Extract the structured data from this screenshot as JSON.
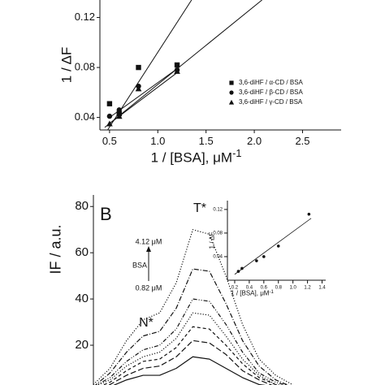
{
  "chart_data": [
    {
      "type": "scatter",
      "xlabel": "1 / [BSA], μM",
      "xlabel_sup": "-1",
      "ylabel": "1 / ΔF",
      "xlim": [
        0.4,
        2.9
      ],
      "ylim": [
        0.03,
        0.134
      ],
      "xticks": [
        0.5,
        {
          "value": 1.0,
          "label": "1.0"
        },
        1.5,
        {
          "value": 2.0,
          "label": "2.0"
        },
        2.5
      ],
      "yticks": [
        0.04,
        0.08,
        0.12
      ],
      "legend": "lower right",
      "series": [
        {
          "name": "3,6-diHF / α-CD / BSA",
          "marker": "square",
          "color": "#111111",
          "x": [
            0.5,
            0.6,
            0.8,
            1.2
          ],
          "values": [
            0.051,
            0.043,
            0.08,
            0.082
          ]
        },
        {
          "name": "3,6-diHF / β-CD / BSA",
          "marker": "circle",
          "color": "#111111",
          "x": [
            0.5,
            0.6,
            0.8,
            1.2
          ],
          "values": [
            0.041,
            0.046,
            0.065,
            0.078
          ]
        },
        {
          "name": "3,6-diHF / γ-CD / BSA",
          "marker": "triangle",
          "color": "#111111",
          "x": [
            0.5,
            0.6,
            0.8,
            1.2
          ],
          "values": [
            0.035,
            0.041,
            0.063,
            0.077
          ]
        }
      ],
      "fit_lines": [
        {
          "x": [
            0.48,
            1.35
          ],
          "values": [
            0.03,
            0.134
          ]
        },
        {
          "x": [
            0.45,
            2.08
          ],
          "values": [
            0.032,
            0.134
          ]
        },
        {
          "x": [
            0.48,
            1.22
          ],
          "values": [
            0.034,
            0.077
          ]
        },
        {
          "x": [
            0.5,
            1.2
          ],
          "values": [
            0.04,
            0.079
          ]
        }
      ]
    },
    {
      "type": "line",
      "panel_label": "B",
      "ylabel": "IF / a.u.",
      "peak_labels": [
        "T*",
        "N*"
      ],
      "concentration_high": "4.12 μM",
      "concentration_label": "BSA",
      "concentration_low": "0.82 μM",
      "xlim": [
        0,
        100
      ],
      "ylim": [
        2.8,
        85
      ],
      "yticks": [
        20,
        40,
        60,
        80
      ],
      "x": [
        0,
        8,
        16,
        24,
        32,
        40,
        48,
        56,
        64,
        72,
        80,
        88,
        96
      ],
      "series": [
        {
          "color": "#111111",
          "style": "dotted",
          "values": [
            3,
            10,
            22,
            31,
            34,
            47,
            70,
            68,
            50,
            29,
            14,
            7,
            3
          ]
        },
        {
          "color": "#111111",
          "style": "dashdot",
          "values": [
            2,
            8,
            17,
            24,
            26,
            36,
            53,
            52,
            38,
            22,
            11,
            5,
            2
          ]
        },
        {
          "color": "#111111",
          "style": "dashdotdot",
          "values": [
            2,
            6,
            13,
            18,
            20,
            27,
            40,
            39,
            29,
            17,
            8,
            4,
            2
          ]
        },
        {
          "color": "#111111",
          "style": "dotted",
          "values": [
            2,
            5,
            11,
            15,
            17,
            23,
            34,
            33,
            24,
            14,
            7,
            3,
            2
          ]
        },
        {
          "color": "#111111",
          "style": "dashed",
          "values": [
            1,
            4,
            9,
            13,
            14,
            19,
            28,
            27,
            20,
            12,
            6,
            3,
            1
          ]
        },
        {
          "color": "#111111",
          "style": "longdash",
          "values": [
            1,
            3,
            7,
            10,
            11,
            15,
            22,
            21,
            16,
            9,
            5,
            2,
            1
          ]
        },
        {
          "color": "#111111",
          "style": "solid",
          "values": [
            1,
            2,
            5,
            7,
            7,
            10,
            15,
            14,
            10,
            6,
            3,
            2,
            1
          ]
        }
      ]
    },
    {
      "type": "scatter",
      "xlabel": "1 / [BSA], μM",
      "xlabel_sup": "-1",
      "ylabel": "1 / ΔF",
      "xlim": [
        0.1,
        1.45
      ],
      "ylim": [
        0,
        0.135
      ],
      "xticks": [
        0.2,
        0.4,
        0.6,
        0.8,
        {
          "value": 1.0,
          "label": "1.0"
        },
        1.2,
        1.4
      ],
      "yticks": [
        0.04,
        0.08,
        0.12
      ],
      "series": [
        {
          "marker": "circle",
          "color": "#111111",
          "x": [
            0.25,
            0.3,
            0.5,
            0.6,
            0.8,
            1.22
          ],
          "values": [
            0.015,
            0.02,
            0.033,
            0.04,
            0.058,
            0.112
          ]
        }
      ],
      "fit_lines": [
        {
          "x": [
            0.2,
            1.25
          ],
          "values": [
            0.01,
            0.105
          ]
        }
      ]
    }
  ]
}
